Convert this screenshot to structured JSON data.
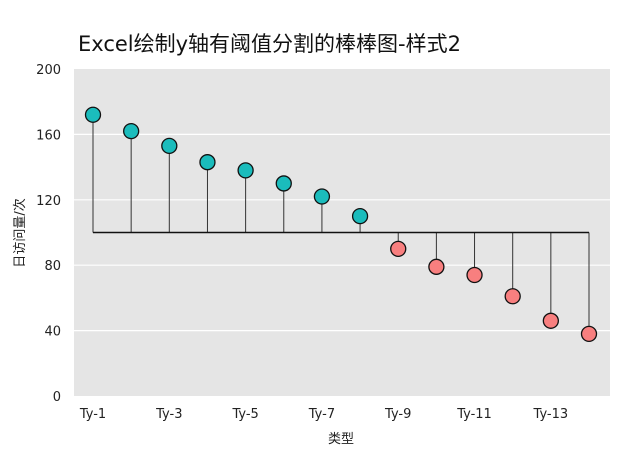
{
  "chart_data": {
    "type": "lollipop",
    "title": "Excel绘制y轴有阈值分割的棒棒图-样式2",
    "xlabel": "类型",
    "ylabel": "日访问量/次",
    "ylim": [
      0,
      200
    ],
    "yticks": [
      0,
      40,
      80,
      120,
      160,
      200
    ],
    "threshold": 100,
    "categories": [
      "Ty-1",
      "Ty-2",
      "Ty-3",
      "Ty-4",
      "Ty-5",
      "Ty-6",
      "Ty-7",
      "Ty-8",
      "Ty-9",
      "Ty-10",
      "Ty-11",
      "Ty-12",
      "Ty-13",
      "Ty-14"
    ],
    "xtick_labels": [
      "Ty-1",
      "Ty-3",
      "Ty-5",
      "Ty-7",
      "Ty-9",
      "Ty-11",
      "Ty-13"
    ],
    "values": [
      172,
      162,
      153,
      143,
      138,
      130,
      122,
      110,
      90,
      79,
      74,
      61,
      46,
      38
    ],
    "grid": true,
    "colors": {
      "above": "#1bbcbc",
      "below": "#f87f7f",
      "marker_edge": "#111111",
      "stem": "#333333",
      "threshold_line": "#111111",
      "background": "#e5e5e5",
      "gridline": "#ffffff"
    }
  }
}
